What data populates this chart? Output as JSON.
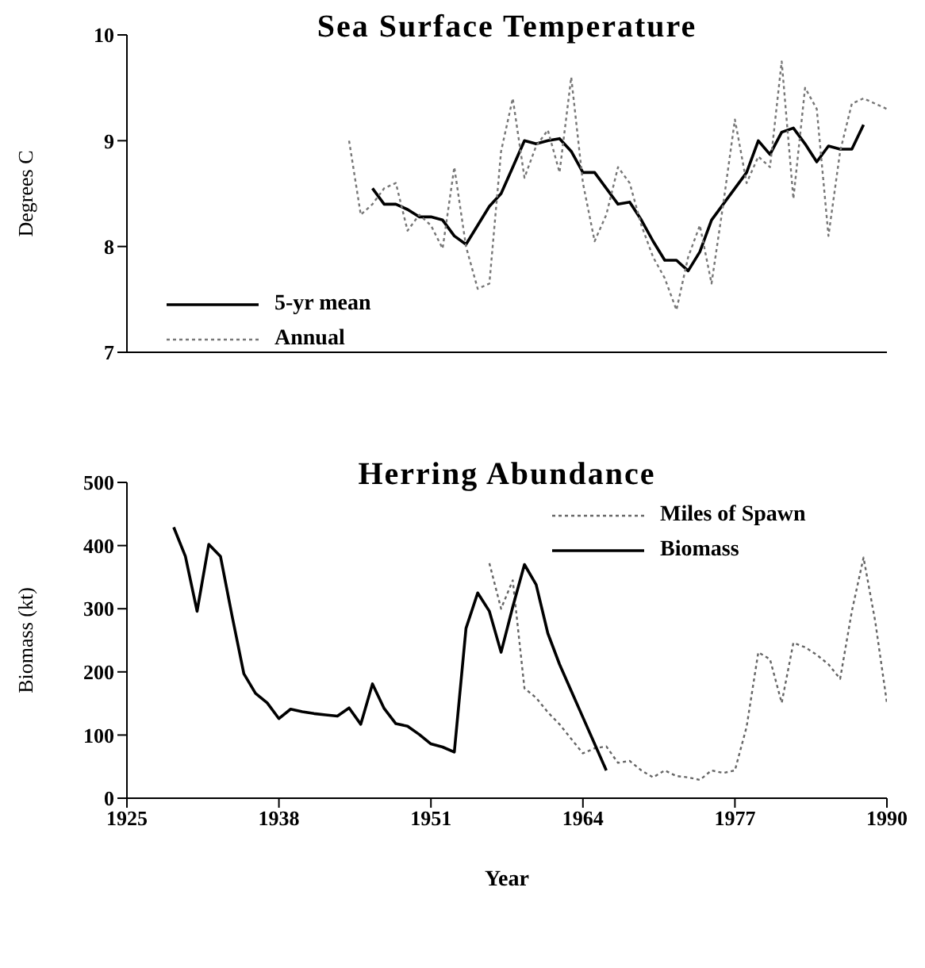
{
  "chart_data": [
    {
      "type": "line",
      "title": "Sea Surface Temperature",
      "ylabel": "Degrees C",
      "xlim": [
        1925,
        1990
      ],
      "xticks": [
        1925,
        1938,
        1951,
        1964,
        1977,
        1990
      ],
      "ylim": [
        7,
        10
      ],
      "yticks": [
        7,
        8,
        9,
        10
      ],
      "tick_labels": "y",
      "legend": "bottom left",
      "series": [
        {
          "name": "5-yr mean",
          "color": "#000000",
          "line_style": "solid",
          "x": [
            1946,
            1947,
            1948,
            1949,
            1950,
            1951,
            1952,
            1953,
            1954,
            1955,
            1956,
            1957,
            1958,
            1959,
            1960,
            1961,
            1962,
            1963,
            1964,
            1965,
            1966,
            1967,
            1968,
            1969,
            1970,
            1971,
            1972,
            1973,
            1974,
            1975,
            1976,
            1977,
            1978,
            1979,
            1980,
            1981,
            1982,
            1983,
            1984,
            1985,
            1986,
            1987,
            1988
          ],
          "values": [
            8.55,
            8.4,
            8.4,
            8.35,
            8.28,
            8.28,
            8.25,
            8.1,
            8.02,
            8.2,
            8.38,
            8.5,
            8.75,
            9.0,
            8.97,
            9.0,
            9.02,
            8.9,
            8.7,
            8.7,
            8.55,
            8.4,
            8.42,
            8.25,
            8.05,
            7.87,
            7.87,
            7.77,
            7.95,
            8.25,
            8.4,
            8.55,
            8.7,
            9.0,
            8.87,
            9.08,
            9.12,
            8.97,
            8.8,
            8.95,
            8.92,
            8.92,
            9.15
          ]
        },
        {
          "name": "Annual",
          "color": "#777777",
          "line_style": "dotted",
          "x": [
            1944,
            1945,
            1946,
            1947,
            1948,
            1949,
            1950,
            1951,
            1952,
            1953,
            1954,
            1955,
            1956,
            1957,
            1958,
            1959,
            1960,
            1961,
            1962,
            1963,
            1964,
            1965,
            1966,
            1967,
            1968,
            1969,
            1970,
            1971,
            1972,
            1973,
            1974,
            1975,
            1976,
            1977,
            1978,
            1979,
            1980,
            1981,
            1982,
            1983,
            1984,
            1985,
            1986,
            1987,
            1988,
            1989,
            1990
          ],
          "values": [
            9.0,
            8.3,
            8.4,
            8.55,
            8.6,
            8.15,
            8.3,
            8.2,
            7.98,
            8.75,
            8.0,
            7.6,
            7.65,
            8.9,
            9.4,
            8.65,
            8.95,
            9.1,
            8.7,
            9.6,
            8.6,
            8.05,
            8.3,
            8.75,
            8.6,
            8.2,
            7.9,
            7.7,
            7.4,
            7.9,
            8.2,
            7.65,
            8.4,
            9.2,
            8.6,
            8.85,
            8.75,
            9.75,
            8.45,
            9.5,
            9.3,
            8.1,
            8.9,
            9.35,
            9.4,
            9.35,
            9.3
          ]
        }
      ]
    },
    {
      "type": "line",
      "title": "Herring Abundance",
      "xlabel": "Year",
      "ylabel": "Biomass (kt)",
      "xlim": [
        1925,
        1990
      ],
      "xticks": [
        1925,
        1938,
        1951,
        1964,
        1977,
        1990
      ],
      "ylim": [
        0,
        500
      ],
      "yticks": [
        0,
        100,
        200,
        300,
        400,
        500
      ],
      "legend": "top right",
      "series": [
        {
          "name": "Miles of Spawn",
          "color": "#666666",
          "line_style": "dotted",
          "x": [
            1956,
            1957,
            1958,
            1959,
            1960,
            1961,
            1962,
            1963,
            1964,
            1965,
            1966,
            1967,
            1968,
            1969,
            1970,
            1971,
            1972,
            1973,
            1974,
            1975,
            1976,
            1977,
            1978,
            1979,
            1980,
            1981,
            1982,
            1983,
            1984,
            1985,
            1986,
            1987,
            1988,
            1989,
            1990
          ],
          "values": [
            372,
            300,
            345,
            174,
            159,
            136,
            117,
            94,
            71,
            79,
            82,
            56,
            59,
            44,
            33,
            44,
            35,
            33,
            29,
            44,
            40,
            44,
            113,
            231,
            220,
            151,
            246,
            239,
            227,
            212,
            189,
            296,
            381,
            280,
            151
          ]
        },
        {
          "name": "Biomass",
          "color": "#000000",
          "line_style": "solid",
          "x": [
            1929,
            1930,
            1931,
            1932,
            1933,
            1934,
            1935,
            1936,
            1937,
            1938,
            1939,
            1940,
            1941,
            1942,
            1943,
            1944,
            1945,
            1946,
            1947,
            1948,
            1949,
            1950,
            1951,
            1952,
            1953,
            1954,
            1955,
            1956,
            1957,
            1958,
            1959,
            1960,
            1961,
            1962,
            1963,
            1964,
            1965,
            1966
          ],
          "values": [
            429,
            383,
            296,
            402,
            383,
            288,
            197,
            166,
            151,
            126,
            141,
            137,
            134,
            132,
            130,
            143,
            117,
            181,
            142,
            118,
            114,
            101,
            86,
            81,
            73,
            269,
            325,
            296,
            231,
            303,
            370,
            338,
            261,
            212,
            170,
            128,
            86,
            44
          ]
        }
      ]
    }
  ]
}
